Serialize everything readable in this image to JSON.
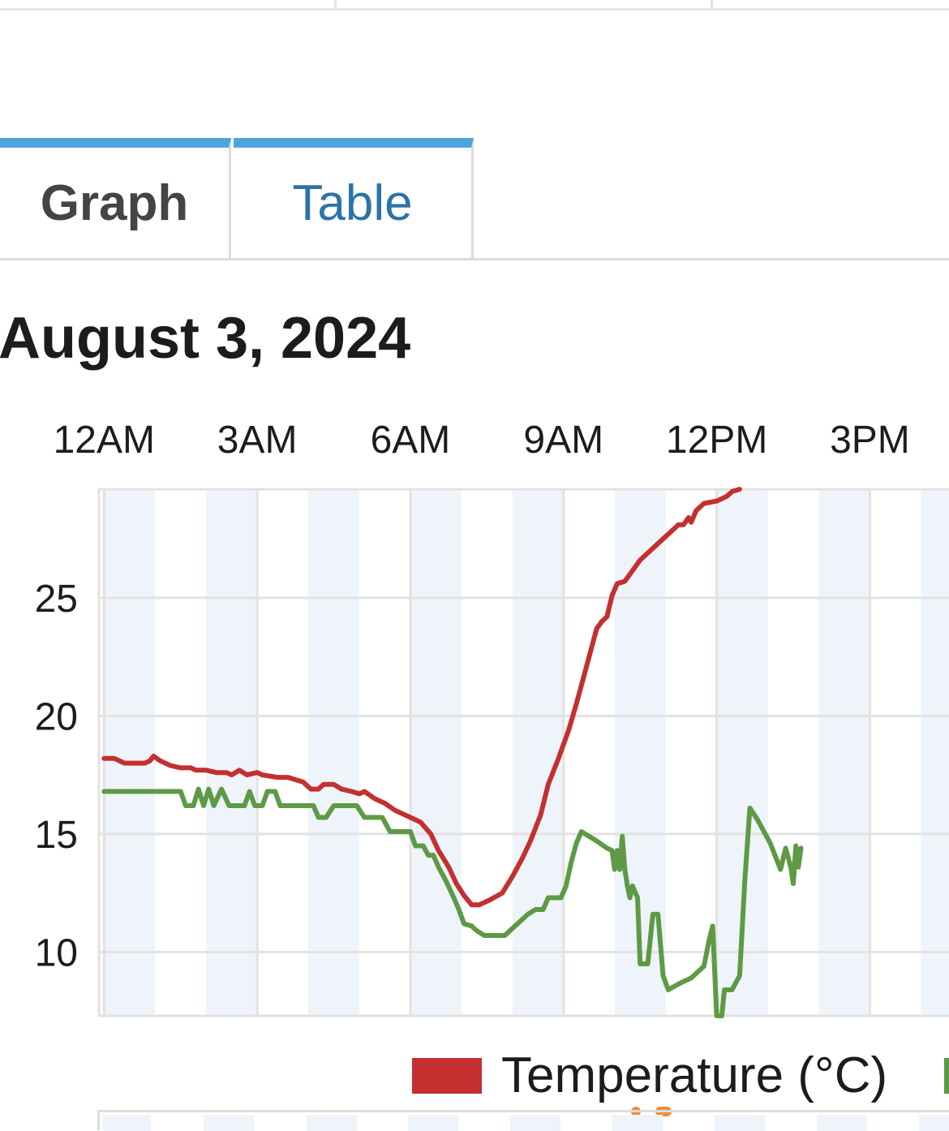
{
  "tabs": [
    {
      "label": "Graph",
      "active": true
    },
    {
      "label": "Table",
      "active": false
    }
  ],
  "date_title": "August 3, 2024",
  "colors": {
    "temperature": "#c3302f",
    "second_series": "#5e9a46",
    "tab_accent": "#4ea5dc",
    "table_tab_text": "#2c73a6",
    "band": "#eef4fa",
    "grid": "#e2e2e2",
    "page_dot": "#ef8c3a"
  },
  "legend": {
    "items": [
      {
        "label": "Temperature (°C)",
        "color": "#c3302f"
      }
    ]
  },
  "chart_data": {
    "type": "line",
    "title": "",
    "xlabel": "",
    "ylabel": "",
    "x_unit": "hour of day",
    "x_ticks": [
      {
        "label": "12AM",
        "value": 0
      },
      {
        "label": "3AM",
        "value": 3
      },
      {
        "label": "6AM",
        "value": 6
      },
      {
        "label": "9AM",
        "value": 9
      },
      {
        "label": "12PM",
        "value": 12
      },
      {
        "label": "3PM",
        "value": 15
      }
    ],
    "xlim": [
      -0.1,
      16.55
    ],
    "y_ticks": [
      10,
      15,
      20,
      25
    ],
    "ylim": [
      7.3,
      29.6
    ],
    "grid": true,
    "x_axis_position": "top",
    "legend_position": "bottom",
    "series": [
      {
        "name": "Temperature (°C)",
        "color": "#c3302f",
        "points": [
          [
            0,
            18.2
          ],
          [
            0.2,
            18.2
          ],
          [
            0.4,
            18.0
          ],
          [
            0.8,
            18.0
          ],
          [
            0.9,
            18.1
          ],
          [
            0.97,
            18.3
          ],
          [
            1.1,
            18.1
          ],
          [
            1.3,
            17.9
          ],
          [
            1.5,
            17.8
          ],
          [
            1.7,
            17.8
          ],
          [
            1.8,
            17.7
          ],
          [
            2.0,
            17.7
          ],
          [
            2.2,
            17.6
          ],
          [
            2.4,
            17.6
          ],
          [
            2.5,
            17.5
          ],
          [
            2.65,
            17.7
          ],
          [
            2.8,
            17.5
          ],
          [
            3.0,
            17.6
          ],
          [
            3.1,
            17.5
          ],
          [
            3.4,
            17.4
          ],
          [
            3.6,
            17.4
          ],
          [
            3.9,
            17.2
          ],
          [
            4.05,
            16.9
          ],
          [
            4.2,
            16.9
          ],
          [
            4.3,
            17.1
          ],
          [
            4.5,
            17.1
          ],
          [
            4.65,
            16.9
          ],
          [
            4.85,
            16.8
          ],
          [
            5.0,
            16.7
          ],
          [
            5.1,
            16.8
          ],
          [
            5.3,
            16.5
          ],
          [
            5.5,
            16.3
          ],
          [
            5.7,
            16.0
          ],
          [
            6.0,
            15.7
          ],
          [
            6.2,
            15.5
          ],
          [
            6.4,
            15.0
          ],
          [
            6.55,
            14.3
          ],
          [
            6.75,
            13.6
          ],
          [
            6.9,
            12.9
          ],
          [
            7.05,
            12.4
          ],
          [
            7.2,
            12.0
          ],
          [
            7.35,
            12.0
          ],
          [
            7.55,
            12.2
          ],
          [
            7.8,
            12.5
          ],
          [
            8.0,
            13.2
          ],
          [
            8.2,
            14.0
          ],
          [
            8.35,
            14.7
          ],
          [
            8.55,
            15.8
          ],
          [
            8.7,
            17.1
          ],
          [
            8.9,
            18.2
          ],
          [
            9.1,
            19.4
          ],
          [
            9.25,
            20.5
          ],
          [
            9.4,
            21.7
          ],
          [
            9.55,
            22.9
          ],
          [
            9.65,
            23.7
          ],
          [
            9.75,
            24.0
          ],
          [
            9.85,
            24.2
          ],
          [
            9.95,
            25.1
          ],
          [
            10.05,
            25.6
          ],
          [
            10.2,
            25.7
          ],
          [
            10.3,
            26.0
          ],
          [
            10.5,
            26.6
          ],
          [
            10.7,
            27.0
          ],
          [
            10.9,
            27.4
          ],
          [
            11.1,
            27.8
          ],
          [
            11.25,
            28.1
          ],
          [
            11.35,
            28.1
          ],
          [
            11.45,
            28.4
          ],
          [
            11.5,
            28.2
          ],
          [
            11.6,
            28.7
          ],
          [
            11.7,
            28.9
          ],
          [
            11.75,
            29.0
          ],
          [
            12.0,
            29.1
          ],
          [
            12.2,
            29.3
          ],
          [
            12.3,
            29.5
          ],
          [
            12.45,
            29.6
          ]
        ]
      },
      {
        "name": "",
        "color": "#5e9a46",
        "points": [
          [
            0,
            16.8
          ],
          [
            1.5,
            16.8
          ],
          [
            1.6,
            16.2
          ],
          [
            1.75,
            16.2
          ],
          [
            1.85,
            16.9
          ],
          [
            1.95,
            16.2
          ],
          [
            2.05,
            16.9
          ],
          [
            2.15,
            16.2
          ],
          [
            2.3,
            16.9
          ],
          [
            2.45,
            16.2
          ],
          [
            2.65,
            16.2
          ],
          [
            2.75,
            16.2
          ],
          [
            2.85,
            16.8
          ],
          [
            2.95,
            16.2
          ],
          [
            3.1,
            16.2
          ],
          [
            3.2,
            16.8
          ],
          [
            3.35,
            16.8
          ],
          [
            3.45,
            16.2
          ],
          [
            3.6,
            16.2
          ],
          [
            4.0,
            16.2
          ],
          [
            4.1,
            16.2
          ],
          [
            4.2,
            15.7
          ],
          [
            4.35,
            15.7
          ],
          [
            4.5,
            16.2
          ],
          [
            4.65,
            16.2
          ],
          [
            4.95,
            16.2
          ],
          [
            5.1,
            15.7
          ],
          [
            5.3,
            15.7
          ],
          [
            5.45,
            15.7
          ],
          [
            5.6,
            15.1
          ],
          [
            5.9,
            15.1
          ],
          [
            6.0,
            15.1
          ],
          [
            6.1,
            14.5
          ],
          [
            6.25,
            14.5
          ],
          [
            6.35,
            14.1
          ],
          [
            6.45,
            14.1
          ],
          [
            6.55,
            13.6
          ],
          [
            6.7,
            13.0
          ],
          [
            6.85,
            12.3
          ],
          [
            6.95,
            11.8
          ],
          [
            7.05,
            11.2
          ],
          [
            7.2,
            11.1
          ],
          [
            7.3,
            10.9
          ],
          [
            7.45,
            10.7
          ],
          [
            7.6,
            10.7
          ],
          [
            7.85,
            10.7
          ],
          [
            8.0,
            11.0
          ],
          [
            8.15,
            11.3
          ],
          [
            8.3,
            11.6
          ],
          [
            8.45,
            11.8
          ],
          [
            8.6,
            11.8
          ],
          [
            8.7,
            12.3
          ],
          [
            8.85,
            12.3
          ],
          [
            8.95,
            12.3
          ],
          [
            9.05,
            12.8
          ],
          [
            9.15,
            13.8
          ],
          [
            9.25,
            14.6
          ],
          [
            9.35,
            15.1
          ],
          [
            9.5,
            14.9
          ],
          [
            9.65,
            14.7
          ],
          [
            9.85,
            14.4
          ],
          [
            9.95,
            14.3
          ],
          [
            10.0,
            13.5
          ],
          [
            10.05,
            14.3
          ],
          [
            10.1,
            13.5
          ],
          [
            10.15,
            14.9
          ],
          [
            10.2,
            13.5
          ],
          [
            10.25,
            12.8
          ],
          [
            10.3,
            12.3
          ],
          [
            10.35,
            12.8
          ],
          [
            10.45,
            12.3
          ],
          [
            10.5,
            9.5
          ],
          [
            10.6,
            9.5
          ],
          [
            10.65,
            9.5
          ],
          [
            10.75,
            11.6
          ],
          [
            10.85,
            11.6
          ],
          [
            10.95,
            9.0
          ],
          [
            11.05,
            8.4
          ],
          [
            11.3,
            8.7
          ],
          [
            11.5,
            8.9
          ],
          [
            11.75,
            9.4
          ],
          [
            11.85,
            10.5
          ],
          [
            11.92,
            11.1
          ],
          [
            12.0,
            7.3
          ],
          [
            12.1,
            7.3
          ],
          [
            12.15,
            8.4
          ],
          [
            12.3,
            8.4
          ],
          [
            12.45,
            9.0
          ],
          [
            12.55,
            13.0
          ],
          [
            12.65,
            16.1
          ],
          [
            12.8,
            15.6
          ],
          [
            13.05,
            14.6
          ],
          [
            13.25,
            13.5
          ],
          [
            13.35,
            14.4
          ],
          [
            13.45,
            13.6
          ],
          [
            13.5,
            12.9
          ],
          [
            13.55,
            14.5
          ],
          [
            13.6,
            13.6
          ],
          [
            13.65,
            14.4
          ]
        ]
      }
    ]
  }
}
